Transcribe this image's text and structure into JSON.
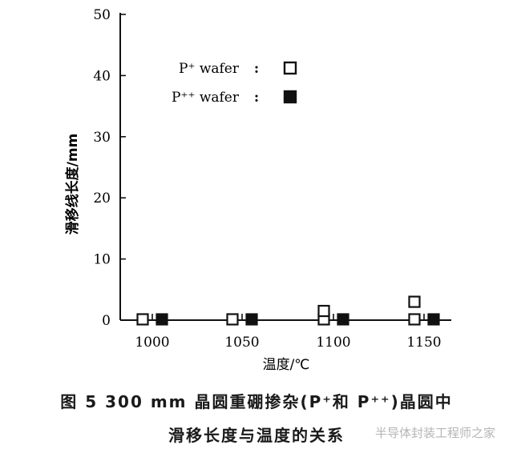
{
  "chart_data": {
    "type": "scatter",
    "xlabel": "温度/℃",
    "ylabel": "滑移线长度/mm",
    "categories": [
      "1000",
      "1050",
      "1100",
      "1150"
    ],
    "yticks": [
      0,
      10,
      20,
      30,
      40,
      50
    ],
    "ylim": [
      0,
      50
    ],
    "grid": false,
    "legend_position": "top-right",
    "series": [
      {
        "name": "P⁺ wafer",
        "marker": "open-square",
        "color": "#111111",
        "points": [
          {
            "x": "1000",
            "y": 0
          },
          {
            "x": "1050",
            "y": 0
          },
          {
            "x": "1100",
            "y": 0
          },
          {
            "x": "1100",
            "y": 1.5
          },
          {
            "x": "1150",
            "y": 0
          },
          {
            "x": "1150",
            "y": 3
          }
        ]
      },
      {
        "name": "P⁺⁺ wafer",
        "marker": "filled-square",
        "color": "#111111",
        "points": [
          {
            "x": "1000",
            "y": 0
          },
          {
            "x": "1050",
            "y": 0
          },
          {
            "x": "1100",
            "y": 0
          },
          {
            "x": "1150",
            "y": 0
          }
        ]
      }
    ],
    "legend_separator": ":"
  },
  "caption": {
    "line1": "图 5   300 mm 晶圆重硼掺杂(P⁺和 P⁺⁺)晶圆中",
    "line2": "滑移长度与温度的关系"
  },
  "watermark": "半导体封装工程师之家"
}
